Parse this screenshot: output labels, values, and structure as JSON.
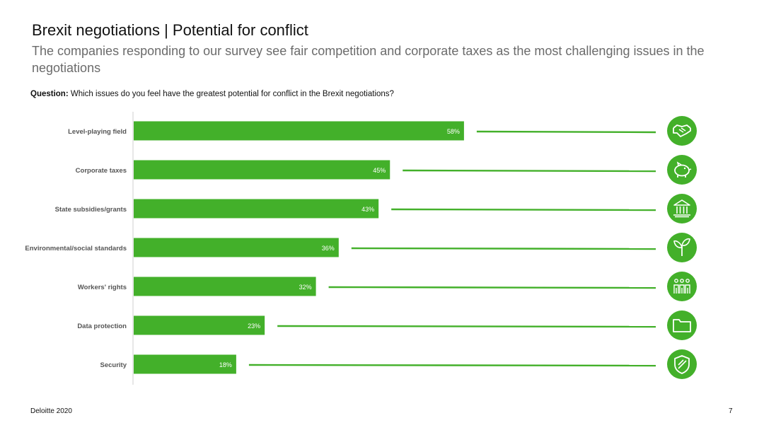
{
  "header": {
    "title": "Brexit negotiations | Potential for conflict",
    "subtitle": "The companies responding to our survey see fair competition and corporate taxes as the most challenging issues in the negotiations"
  },
  "question": {
    "label": "Question:",
    "text": " Which issues do you feel have the greatest potential for conflict in the Brexit negotiations?"
  },
  "colors": {
    "bar": "#43b02a",
    "axis": "#cfcfcf"
  },
  "chart_data": {
    "type": "bar",
    "orientation": "horizontal",
    "categories": [
      "Level-playing field",
      "Corporate taxes",
      "State subsidies/grants",
      "Environmental/social standards",
      "Workers' rights",
      "Data protection",
      "Security"
    ],
    "values": [
      58,
      45,
      43,
      36,
      32,
      23,
      18
    ],
    "value_labels": [
      "58%",
      "45%",
      "43%",
      "36%",
      "32%",
      "23%",
      "18%"
    ],
    "unit": "%",
    "xlim": [
      0,
      100
    ],
    "grid": false,
    "legend": "none",
    "icons": [
      "handshake-icon",
      "piggy-bank-icon",
      "government-building-icon",
      "sprout-icon",
      "people-group-icon",
      "folder-icon",
      "shield-check-icon"
    ]
  },
  "footer": {
    "source": "Deloitte 2020",
    "page_number": "7"
  }
}
